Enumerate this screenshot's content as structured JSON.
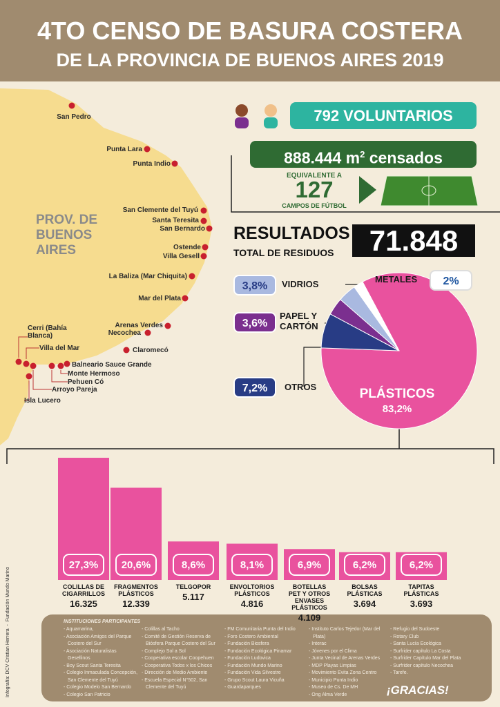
{
  "header": {
    "title": [
      "4TO CENSO DE BASURA COSTERA",
      "DE LA PROVINCIA DE BUENOS AIRES 2019"
    ]
  },
  "map": {
    "region_label": "PROV. DE BUENOS AIRES",
    "places": [
      "San Pedro",
      "Punta Lara",
      "Punta Indio",
      "San Clemente del Tuyú",
      "Santa Teresita",
      "San Bernardo",
      "Ostende",
      "Villa Gesell",
      "La Baliza (Mar Chiquita)",
      "Mar del Plata",
      "Arenas Verdes",
      "Necochea",
      "Claromecó",
      "Cerri (Bahía Blanca)",
      "Villa del Mar",
      "Balneario Sauce Grande",
      "Monte Hermoso",
      "Pehuen Có",
      "Arroyo Pareja",
      "Isla Lucero"
    ]
  },
  "stats": {
    "volunteers": "792 VOLUNTARIOS",
    "area_value": "888.444 m",
    "area_exponent": "2",
    "area_unit": "censados",
    "equivalent_label": "EQUIVALENTE A",
    "fields": "127",
    "fields_unit": "CAMPOS DE FÚTBOL"
  },
  "results": {
    "title": "RESULTADOS",
    "subtitle": "TOTAL DE RESIDUOS",
    "total": "71.848"
  },
  "chart_data": [
    {
      "type": "pie",
      "categories": [
        "PLÁSTICOS",
        "OTROS",
        "PAPEL Y CARTÓN",
        "VIDRIOS",
        "METALES"
      ],
      "values": [
        83.2,
        7.2,
        3.6,
        3.8,
        2
      ],
      "value_labels": [
        "83,2%",
        "7,2%",
        "3,6%",
        "3,8%",
        "2%"
      ],
      "colors": [
        "#e9529e",
        "#283c85",
        "#7b2f8f",
        "#a9b9e0",
        "#ffffff"
      ]
    },
    {
      "type": "bar",
      "categories": [
        "COLILLAS DE CIGARRILLOS",
        "FRAGMENTOS PLÁSTICOS",
        "TELGOPOR",
        "ENVOLTORIOS PLÁSTICOS",
        "BOTELLAS PET Y OTROS ENVASES PLÁSTICOS",
        "BOLSAS PLÁSTICAS",
        "TAPITAS PLÁSTICAS"
      ],
      "values": [
        27.3,
        20.6,
        8.6,
        8.1,
        6.9,
        6.2,
        6.2
      ],
      "value_labels": [
        "27,3%",
        "20,6%",
        "8,6%",
        "8,1%",
        "6,9%",
        "6,2%",
        "6,2%"
      ],
      "counts": [
        "16.325",
        "12.339",
        "5.117",
        "4.816",
        "4.109",
        "3.694",
        "3.693"
      ],
      "color": "#e9529e"
    }
  ],
  "institutions": {
    "title": "INSTITUCIONES PARTICIPANTES",
    "columns": [
      [
        "Aquamarina,",
        "Asociación Amigos del Parque Costero del Sur",
        "Asociación Naturalistas Gesellinos",
        "Boy Scout Santa Teresita",
        "Colegio Inmaculada Concepción, San Clemente del Tuyú",
        "Colegio Modelo San Bernardo",
        "Colegio San Patricio"
      ],
      [
        "Colillas al Tacho",
        "Comité de Gestión Reserva de Biósfera Parque Costero del Sur",
        "Complejo Sol a Sol",
        "Cooperativa escolar Coopehuen",
        "Cooperativa Todos x los Chicos",
        "Dirección de Medio Ambiente",
        "Escuela Especial N°502, San Clemente del Tuyú"
      ],
      [
        "FM Comunitaria Punta del Indio",
        "Foro Costero Ambiental",
        "Fundación Biosfera",
        "Fundación Ecológica Pinamar",
        "Fundación Ludovica",
        "Fundación Mundo Marino",
        "Fundación Vida Silvestre",
        "Grupo Scout Laura Vicuña",
        "Guardaparques"
      ],
      [
        "Instituto Carlos Tejedor (Mar del Plata)",
        "Interac",
        "Jóvenes por el Clima",
        "Junta Vecinal de Arenas Verdes",
        "MDP Playas Limpias",
        "Movimiento Evita Zona Centro",
        "Municipio Punta Indio",
        "Museo de Cs. De MH",
        "Ong Alma Verde"
      ],
      [
        "Refugio del Sudoeste",
        "Rotary Club",
        "Santa Lucía Ecológica",
        "Surfrider capítulo La Costa",
        "Surfrider Capítulo Mar del Plata",
        "Surfrider capítulo Necochea",
        "Tarefe."
      ]
    ]
  },
  "thanks": "¡GRACIAS!",
  "credit": "Infografía: DCV Cristian Herrera  -  Fundación Mundo Marino"
}
